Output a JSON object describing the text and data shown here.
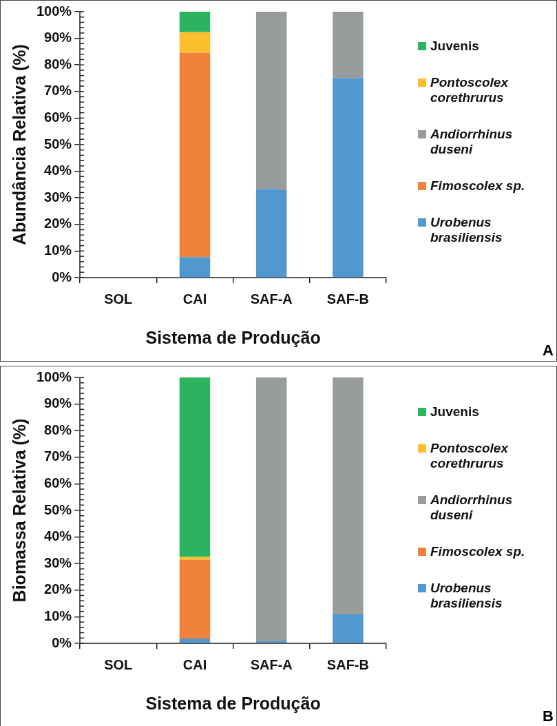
{
  "chart_data": [
    {
      "type": "bar",
      "stacked": true,
      "ylabel": "Abundância Relativa (%)",
      "xlabel": "Sistema de Produção",
      "categories": [
        "SOL",
        "CAI",
        "SAF-A",
        "SAF-B"
      ],
      "legend": "right",
      "annotations": [
        "A"
      ],
      "series": [
        {
          "name": "Urobenus brasiliensis",
          "color": "#5197d0",
          "values": [
            0,
            7.7,
            33.3,
            75
          ]
        },
        {
          "name": "Fimoscolex sp.",
          "color": "#f0823c",
          "values": [
            0,
            76.9,
            0,
            0
          ]
        },
        {
          "name": "Andiorrhinus duseni",
          "color": "#999c9c",
          "values": [
            0,
            0,
            66.7,
            25
          ]
        },
        {
          "name": "Pontoscolex corethrurus",
          "color": "#fdbe2b",
          "values": [
            0,
            7.7,
            0,
            0
          ]
        },
        {
          "name": "Juvenis",
          "color": "#2bb35f",
          "values": [
            0,
            7.7,
            0,
            0
          ]
        }
      ],
      "ylim": [
        0,
        100
      ],
      "yticks": [
        {
          "value": 0,
          "label": "0%"
        },
        {
          "value": 2,
          "label": null
        },
        {
          "value": 4,
          "label": null
        },
        {
          "value": 6,
          "label": null
        },
        {
          "value": 8,
          "label": null
        },
        {
          "value": 10,
          "label": "10%"
        },
        {
          "value": 12,
          "label": null
        },
        {
          "value": 14,
          "label": null
        },
        {
          "value": 16,
          "label": null
        },
        {
          "value": 18,
          "label": null
        },
        {
          "value": 20,
          "label": "20%"
        },
        {
          "value": 22,
          "label": null
        },
        {
          "value": 24,
          "label": null
        },
        {
          "value": 26,
          "label": null
        },
        {
          "value": 28,
          "label": null
        },
        {
          "value": 30,
          "label": "30%"
        },
        {
          "value": 32,
          "label": null
        },
        {
          "value": 34,
          "label": null
        },
        {
          "value": 36,
          "label": null
        },
        {
          "value": 38,
          "label": null
        },
        {
          "value": 40,
          "label": "40%"
        },
        {
          "value": 42,
          "label": null
        },
        {
          "value": 44,
          "label": null
        },
        {
          "value": 46,
          "label": null
        },
        {
          "value": 48,
          "label": null
        },
        {
          "value": 50,
          "label": "50%"
        },
        {
          "value": 52,
          "label": null
        },
        {
          "value": 54,
          "label": null
        },
        {
          "value": 56,
          "label": null
        },
        {
          "value": 58,
          "label": null
        },
        {
          "value": 60,
          "label": "60%"
        },
        {
          "value": 62,
          "label": null
        },
        {
          "value": 64,
          "label": null
        },
        {
          "value": 66,
          "label": null
        },
        {
          "value": 68,
          "label": null
        },
        {
          "value": 70,
          "label": "70%"
        },
        {
          "value": 72,
          "label": null
        },
        {
          "value": 74,
          "label": null
        },
        {
          "value": 76,
          "label": null
        },
        {
          "value": 78,
          "label": null
        },
        {
          "value": 80,
          "label": "80%"
        },
        {
          "value": 82,
          "label": null
        },
        {
          "value": 84,
          "label": null
        },
        {
          "value": 86,
          "label": null
        },
        {
          "value": 88,
          "label": null
        },
        {
          "value": 90,
          "label": "90%"
        },
        {
          "value": 92,
          "label": null
        },
        {
          "value": 94,
          "label": null
        },
        {
          "value": 96,
          "label": null
        },
        {
          "value": 98,
          "label": null
        },
        {
          "value": 100,
          "label": "100%"
        }
      ]
    },
    {
      "type": "bar",
      "stacked": true,
      "ylabel": "Biomassa Relativa (%)",
      "xlabel": "Sistema de Produção",
      "categories": [
        "SOL",
        "CAI",
        "SAF-A",
        "SAF-B"
      ],
      "legend": "right",
      "annotations": [
        "B"
      ],
      "series": [
        {
          "name": "Urobenus brasiliensis",
          "color": "#5197d0",
          "values": [
            0,
            1.8,
            0.8,
            10.9
          ]
        },
        {
          "name": "Fimoscolex sp.",
          "color": "#f0823c",
          "values": [
            0,
            29.6,
            0,
            0
          ]
        },
        {
          "name": "Andiorrhinus duseni",
          "color": "#999c9c",
          "values": [
            0,
            0,
            99.2,
            89.1
          ]
        },
        {
          "name": "Pontoscolex corethrurus",
          "color": "#fdbe2b",
          "values": [
            0,
            1.1,
            0,
            0
          ]
        },
        {
          "name": "Juvenis",
          "color": "#2bb35f",
          "values": [
            0,
            67.5,
            0,
            0
          ]
        }
      ],
      "ylim": [
        0,
        100
      ],
      "yticks": [
        {
          "value": 0,
          "label": "0%"
        },
        {
          "value": 2,
          "label": null
        },
        {
          "value": 4,
          "label": null
        },
        {
          "value": 6,
          "label": null
        },
        {
          "value": 8,
          "label": null
        },
        {
          "value": 10,
          "label": "10%"
        },
        {
          "value": 12,
          "label": null
        },
        {
          "value": 14,
          "label": null
        },
        {
          "value": 16,
          "label": null
        },
        {
          "value": 18,
          "label": null
        },
        {
          "value": 20,
          "label": "20%"
        },
        {
          "value": 22,
          "label": null
        },
        {
          "value": 24,
          "label": null
        },
        {
          "value": 26,
          "label": null
        },
        {
          "value": 28,
          "label": null
        },
        {
          "value": 30,
          "label": "30%"
        },
        {
          "value": 32,
          "label": null
        },
        {
          "value": 34,
          "label": null
        },
        {
          "value": 36,
          "label": null
        },
        {
          "value": 38,
          "label": null
        },
        {
          "value": 40,
          "label": "40%"
        },
        {
          "value": 42,
          "label": null
        },
        {
          "value": 44,
          "label": null
        },
        {
          "value": 46,
          "label": null
        },
        {
          "value": 48,
          "label": null
        },
        {
          "value": 50,
          "label": "50%"
        },
        {
          "value": 52,
          "label": null
        },
        {
          "value": 54,
          "label": null
        },
        {
          "value": 56,
          "label": null
        },
        {
          "value": 58,
          "label": null
        },
        {
          "value": 60,
          "label": "60%"
        },
        {
          "value": 62,
          "label": null
        },
        {
          "value": 64,
          "label": null
        },
        {
          "value": 66,
          "label": null
        },
        {
          "value": 68,
          "label": null
        },
        {
          "value": 70,
          "label": "70%"
        },
        {
          "value": 72,
          "label": null
        },
        {
          "value": 74,
          "label": null
        },
        {
          "value": 76,
          "label": null
        },
        {
          "value": 78,
          "label": null
        },
        {
          "value": 80,
          "label": "80%"
        },
        {
          "value": 82,
          "label": null
        },
        {
          "value": 84,
          "label": null
        },
        {
          "value": 86,
          "label": null
        },
        {
          "value": 88,
          "label": null
        },
        {
          "value": 90,
          "label": "90%"
        },
        {
          "value": 92,
          "label": null
        },
        {
          "value": 94,
          "label": null
        },
        {
          "value": 96,
          "label": null
        },
        {
          "value": 98,
          "label": null
        },
        {
          "value": 100,
          "label": "100%"
        }
      ]
    }
  ]
}
